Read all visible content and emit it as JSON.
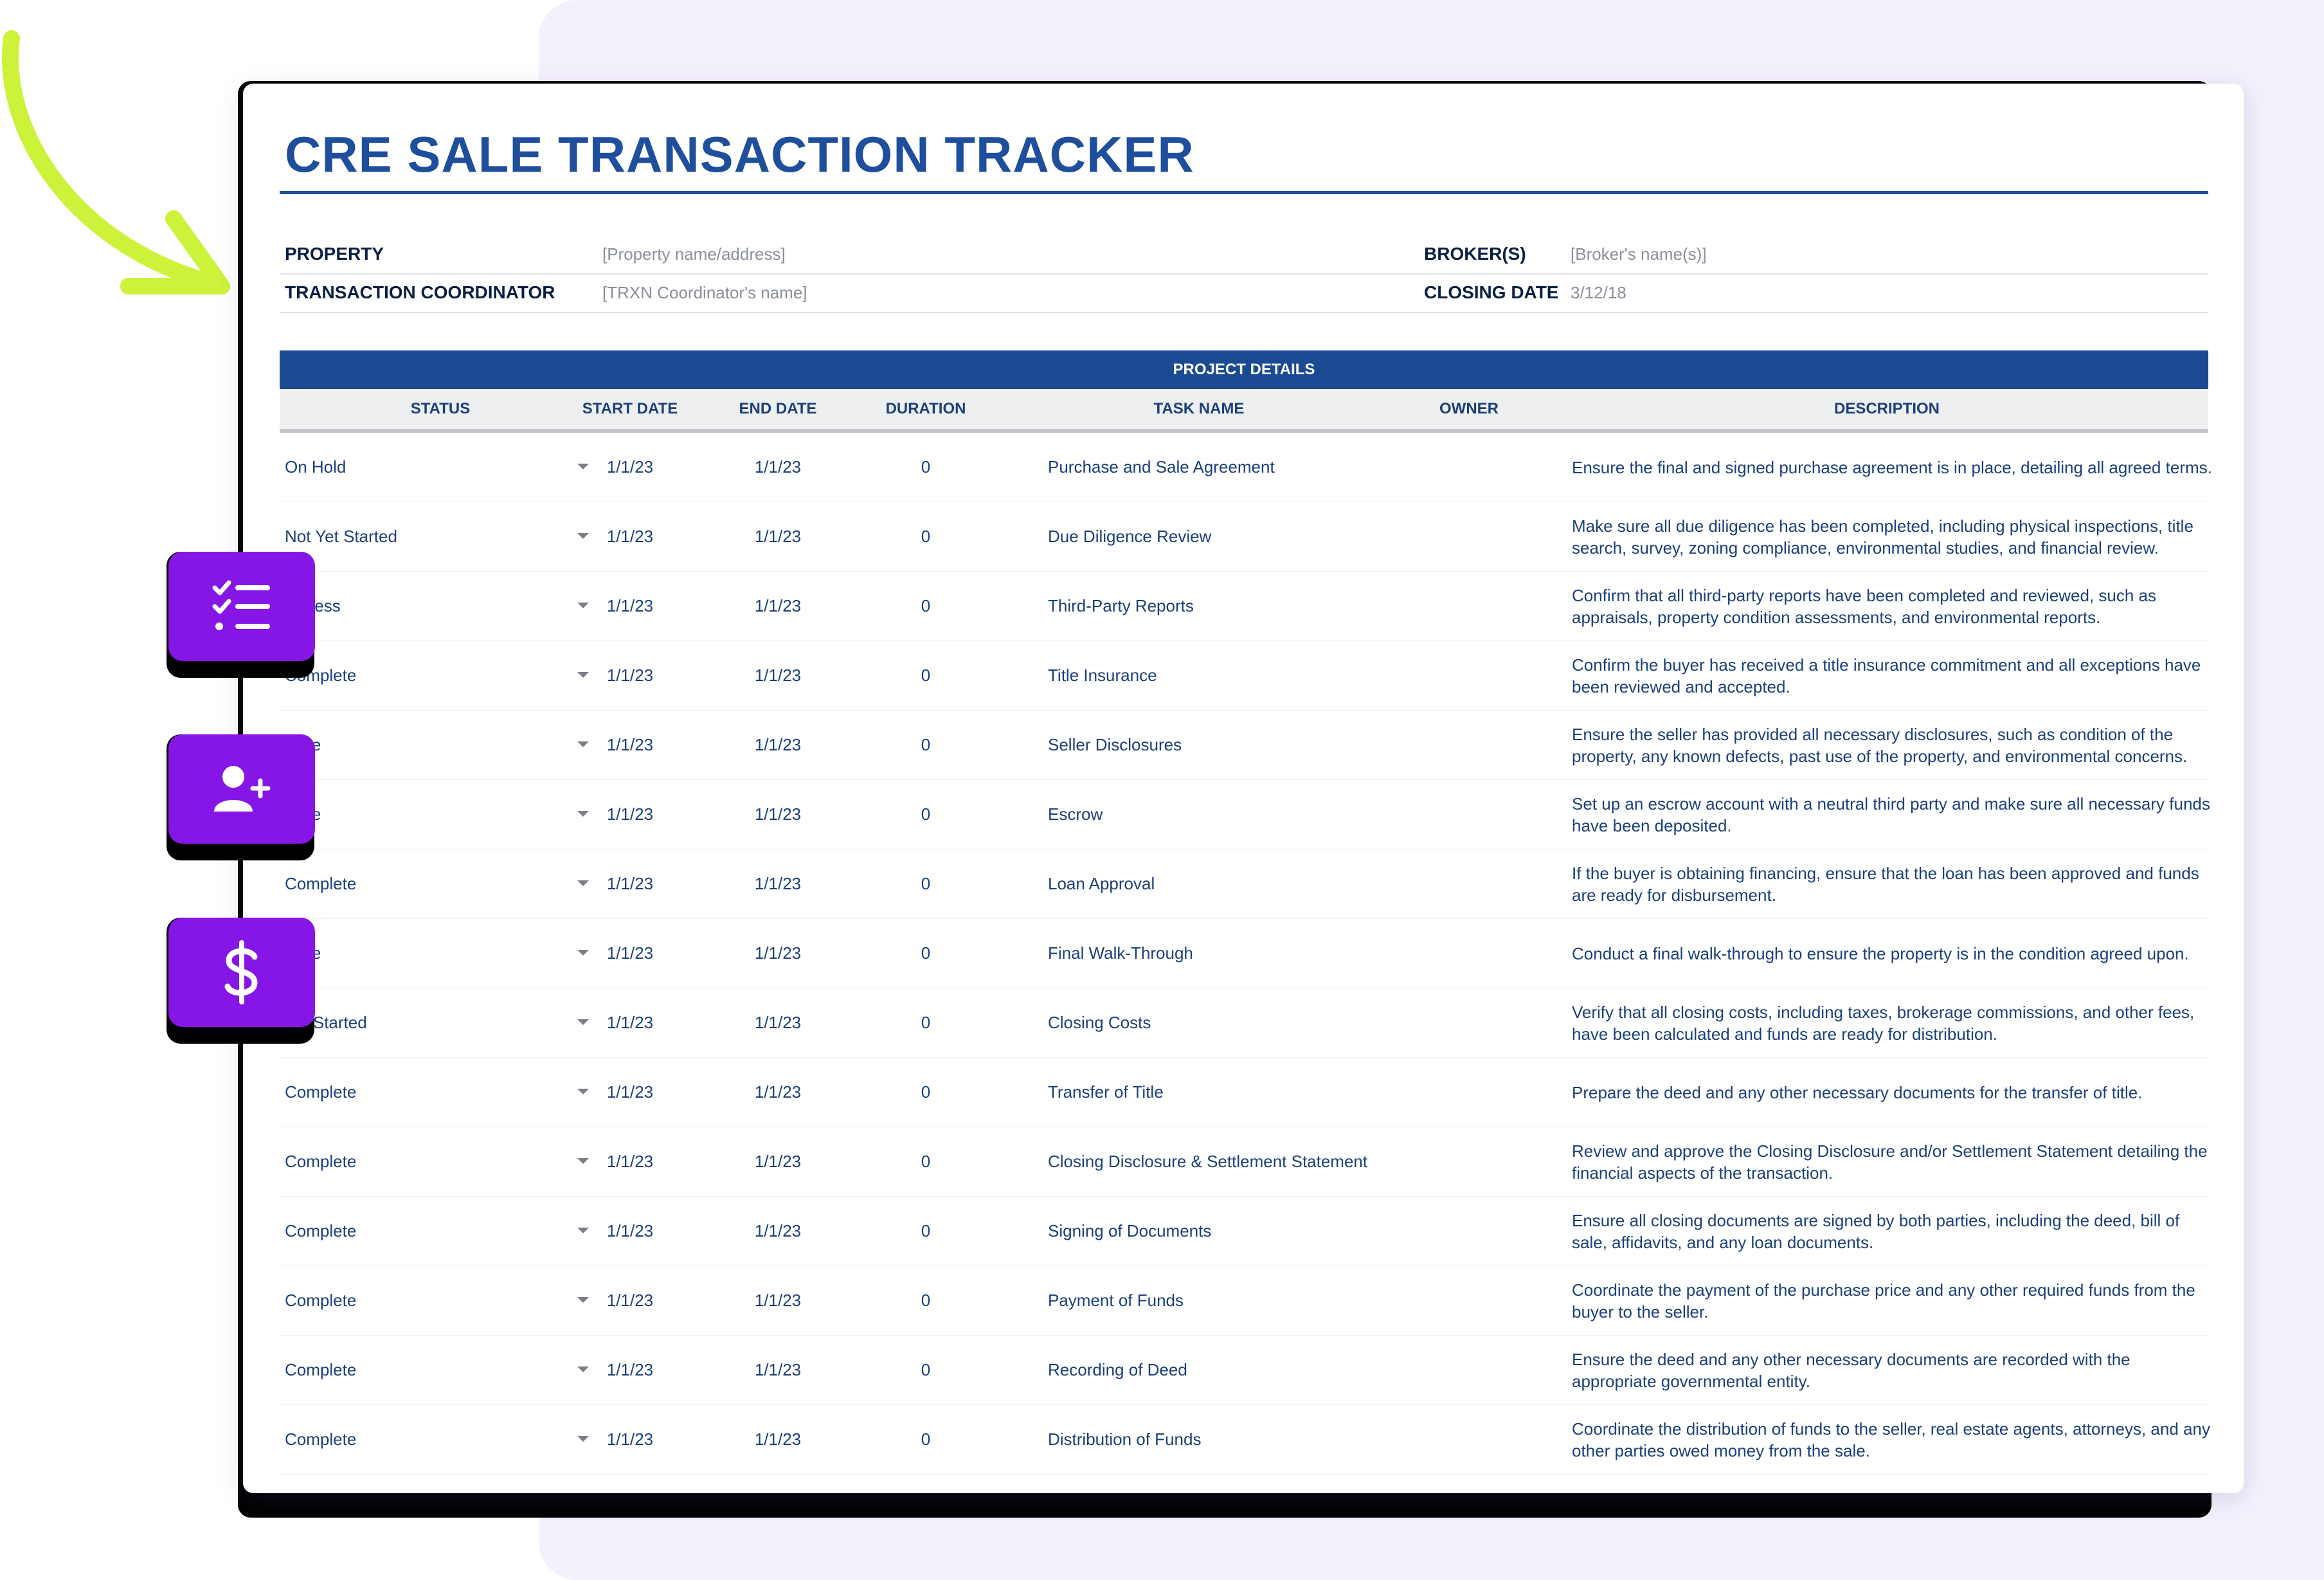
{
  "title": "CRE SALE TRANSACTION TRACKER",
  "meta": {
    "property_label": "PROPERTY",
    "property_value": "[Property name/address]",
    "coordinator_label": "TRANSACTION COORDINATOR",
    "coordinator_value": "[TRXN Coordinator's name]",
    "brokers_label": "BROKER(S)",
    "brokers_value": "[Broker's name(s)]",
    "closing_label": "CLOSING DATE",
    "closing_value": "3/12/18"
  },
  "table": {
    "group_header": "PROJECT DETAILS",
    "columns": {
      "status": "STATUS",
      "start_date": "START DATE",
      "end_date": "END DATE",
      "duration": "DURATION",
      "task_name": "TASK NAME",
      "owner": "OWNER",
      "description": "DESCRIPTION"
    },
    "rows": [
      {
        "status": "On Hold",
        "start": "1/1/23",
        "end": "1/1/23",
        "duration": "0",
        "task": "Purchase and Sale Agreement",
        "owner": "",
        "description": "Ensure the final and signed purchase agreement is in place, detailing all agreed terms."
      },
      {
        "status": "Not Yet Started",
        "start": "1/1/23",
        "end": "1/1/23",
        "duration": "0",
        "task": "Due Diligence Review",
        "owner": "",
        "description": "Make sure all due diligence has been completed, including physical inspections, title search, survey, zoning compliance, environmental studies, and financial review."
      },
      {
        "status": "rogress",
        "start": "1/1/23",
        "end": "1/1/23",
        "duration": "0",
        "task": "Third-Party Reports",
        "owner": "",
        "description": "Confirm that all third-party reports have been completed and reviewed, such as appraisals, property condition assessments, and environmental reports."
      },
      {
        "status": "Complete",
        "start": "1/1/23",
        "end": "1/1/23",
        "duration": "0",
        "task": "Title Insurance",
        "owner": "",
        "description": "Confirm the buyer has received a title insurance commitment and all exceptions have been reviewed and accepted."
      },
      {
        "status": "plete",
        "start": "1/1/23",
        "end": "1/1/23",
        "duration": "0",
        "task": "Seller Disclosures",
        "owner": "",
        "description": "Ensure the seller has provided all necessary disclosures, such as condition of the property, any known defects, past use of the property, and environmental concerns."
      },
      {
        "status": "plete",
        "start": "1/1/23",
        "end": "1/1/23",
        "duration": "0",
        "task": "Escrow",
        "owner": "",
        "description": "Set up an escrow account with a neutral third party and make sure all necessary funds have been deposited."
      },
      {
        "status": "Complete",
        "start": "1/1/23",
        "end": "1/1/23",
        "duration": "0",
        "task": "Loan Approval",
        "owner": "",
        "description": "If the buyer is obtaining financing, ensure that the loan has been approved and funds are ready for disbursement."
      },
      {
        "status": "plete",
        "start": "1/1/23",
        "end": "1/1/23",
        "duration": "0",
        "task": "Final Walk-Through",
        "owner": "",
        "description": "Conduct a final walk-through to ensure the property is in the condition agreed upon."
      },
      {
        "status": "Yet Started",
        "start": "1/1/23",
        "end": "1/1/23",
        "duration": "0",
        "task": "Closing Costs",
        "owner": "",
        "description": "Verify that all closing costs, including taxes, brokerage commissions, and other fees, have been calculated and funds are ready for distribution."
      },
      {
        "status": "Complete",
        "start": "1/1/23",
        "end": "1/1/23",
        "duration": "0",
        "task": "Transfer of Title",
        "owner": "",
        "description": "Prepare the deed and any other necessary documents for the transfer of title."
      },
      {
        "status": "Complete",
        "start": "1/1/23",
        "end": "1/1/23",
        "duration": "0",
        "task": "Closing Disclosure & Settlement Statement",
        "owner": "",
        "description": "Review and approve the Closing Disclosure and/or Settlement Statement detailing the financial aspects of the transaction."
      },
      {
        "status": "Complete",
        "start": "1/1/23",
        "end": "1/1/23",
        "duration": "0",
        "task": "Signing of Documents",
        "owner": "",
        "description": "Ensure all closing documents are signed by both parties, including the deed, bill of sale, affidavits, and any loan documents."
      },
      {
        "status": "Complete",
        "start": "1/1/23",
        "end": "1/1/23",
        "duration": "0",
        "task": "Payment of Funds",
        "owner": "",
        "description": "Coordinate the payment of the purchase price and any other required funds from the buyer to the seller."
      },
      {
        "status": "Complete",
        "start": "1/1/23",
        "end": "1/1/23",
        "duration": "0",
        "task": "Recording of Deed",
        "owner": "",
        "description": " Ensure the deed and any other necessary documents are recorded with the appropriate governmental entity."
      },
      {
        "status": "Complete",
        "start": "1/1/23",
        "end": "1/1/23",
        "duration": "0",
        "task": "Distribution of Funds",
        "owner": "",
        "description": "Coordinate the distribution of funds to the seller, real estate agents, attorneys, and any other parties owed money from the sale."
      }
    ]
  },
  "floating_buttons": [
    {
      "icon": "checklist-icon"
    },
    {
      "icon": "add-user-icon"
    },
    {
      "icon": "dollar-icon"
    }
  ],
  "colors": {
    "accent_blue": "#1e4e9c",
    "header_blue": "#1c4a92",
    "purple": "#8616e6",
    "lime": "#cdf23a",
    "panel_lavender": "#f4f0fc"
  }
}
